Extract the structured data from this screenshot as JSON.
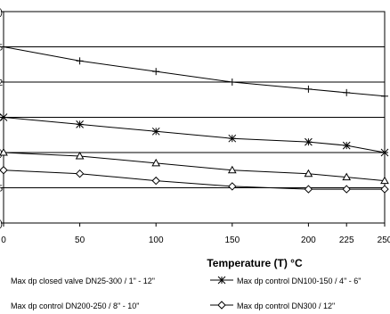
{
  "chart_data": {
    "type": "line",
    "title": "",
    "xlabel": "Temperature (T) °C",
    "ylabel": "",
    "x": [
      0,
      50,
      100,
      150,
      200,
      225,
      250
    ],
    "xlim": [
      0,
      250
    ],
    "ylim": [
      0,
      3
    ],
    "x_tick_labels": [
      "0",
      "50",
      "100",
      "150",
      "200",
      "225",
      "250"
    ],
    "y_tick_labels": [
      ")",
      "5",
      "2",
      "5",
      ")",
      "5",
      ")"
    ],
    "grid": "horizontal",
    "legend_position": "bottom",
    "series": [
      {
        "name": "Max dp closed valve DN25-300 / 1\" - 12\"",
        "marker": "plus",
        "show_in_legend": false,
        "values": [
          2.5,
          2.3,
          2.15,
          2.0,
          1.9,
          1.85,
          1.8
        ]
      },
      {
        "name": "Max dp control DN100-150 / 4\" - 6\"",
        "marker": "star",
        "show_in_legend": true,
        "values": [
          1.5,
          1.4,
          1.3,
          1.2,
          1.15,
          1.1,
          1.0
        ]
      },
      {
        "name": "Max dp control DN200-250 / 8\" - 10\"",
        "marker": "triangle",
        "show_in_legend": false,
        "values": [
          1.0,
          0.95,
          0.85,
          0.75,
          0.7,
          0.65,
          0.6
        ]
      },
      {
        "name": "Max dp control DN300 / 12\"",
        "marker": "diamond",
        "show_in_legend": true,
        "values": [
          0.75,
          0.7,
          0.6,
          0.52,
          0.48,
          0.48,
          0.48
        ]
      }
    ]
  }
}
